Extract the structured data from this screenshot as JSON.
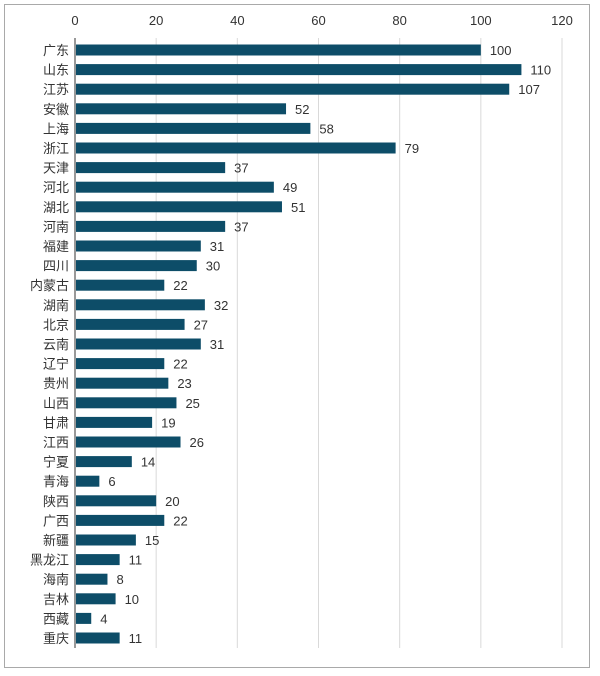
{
  "chart_data": {
    "type": "bar",
    "orientation": "horizontal",
    "title": "",
    "xlabel": "",
    "ylabel": "",
    "xlim": [
      0,
      120
    ],
    "x_ticks": [
      0,
      20,
      40,
      60,
      80,
      100,
      120
    ],
    "grid": true,
    "axis_position": "top",
    "bar_color": "#0d4d68",
    "categories": [
      "广东",
      "山东",
      "江苏",
      "安徽",
      "上海",
      "浙江",
      "天津",
      "河北",
      "湖北",
      "河南",
      "福建",
      "四川",
      "内蒙古",
      "湖南",
      "北京",
      "云南",
      "辽宁",
      "贵州",
      "山西",
      "甘肃",
      "江西",
      "宁夏",
      "青海",
      "陕西",
      "广西",
      "新疆",
      "黑龙江",
      "海南",
      "吉林",
      "西藏",
      "重庆"
    ],
    "values": [
      100,
      110,
      107,
      52,
      58,
      79,
      37,
      49,
      51,
      37,
      31,
      30,
      22,
      32,
      27,
      31,
      22,
      23,
      25,
      19,
      26,
      14,
      6,
      20,
      22,
      15,
      11,
      8,
      10,
      4,
      11
    ]
  }
}
